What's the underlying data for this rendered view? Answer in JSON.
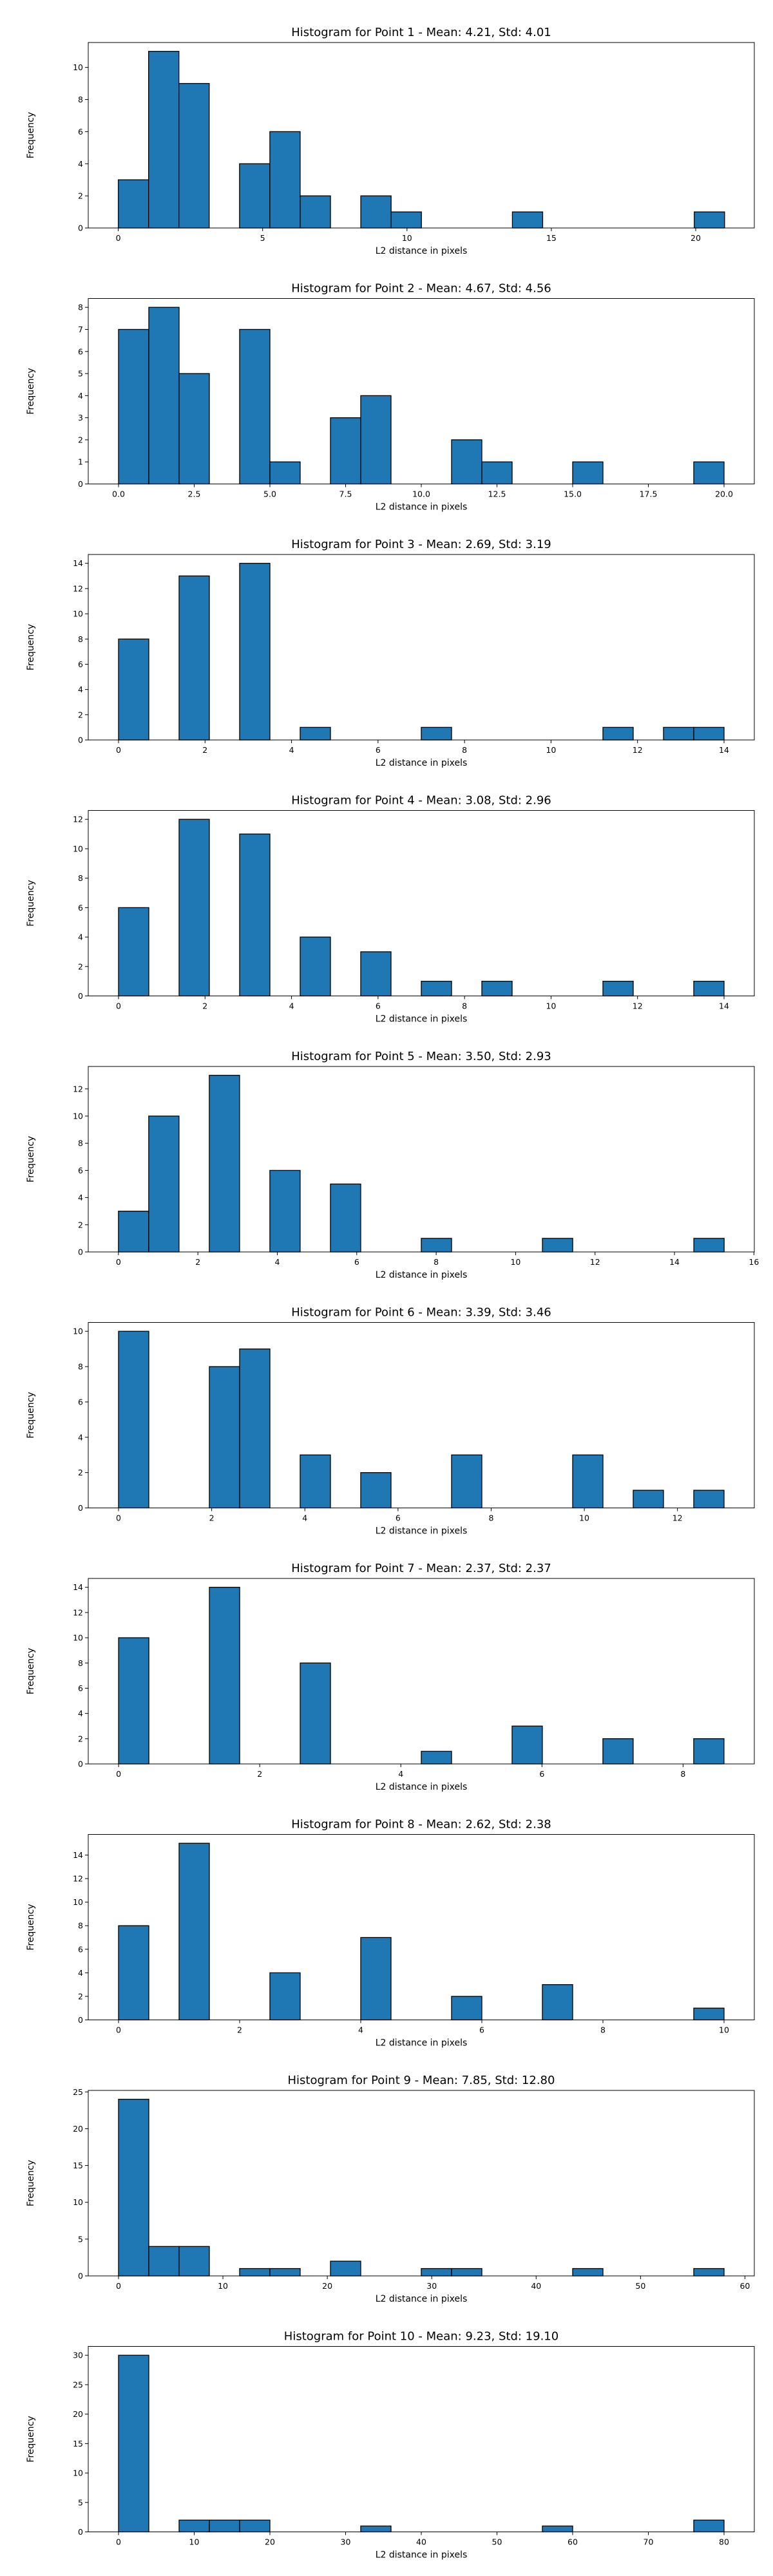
{
  "chart_data": [
    {
      "type": "bar",
      "title": "Histogram for Point 1 - Mean: 4.21, Std: 4.01",
      "xlabel": "L2 distance in pixels",
      "ylabel": "Frequency",
      "xlim": [
        -1.04,
        22.03
      ],
      "ylim": [
        0,
        11.55
      ],
      "xticks": [
        0,
        5,
        10,
        15,
        20
      ],
      "xtick_labels": [
        "0",
        "5",
        "10",
        "15",
        "20"
      ],
      "yticks": [
        0,
        2,
        4,
        6,
        8,
        10
      ],
      "ytick_labels": [
        "0",
        "2",
        "4",
        "6",
        "8",
        "10"
      ],
      "bin_edges": [
        0.0,
        1.05,
        2.1,
        3.15,
        4.2,
        5.25,
        6.3,
        7.35,
        8.4,
        9.45,
        10.5,
        11.55,
        12.6,
        13.65,
        14.7,
        15.75,
        16.8,
        17.85,
        18.9,
        19.95,
        21.0
      ],
      "counts": [
        3,
        11,
        9,
        0,
        4,
        6,
        2,
        0,
        2,
        1,
        0,
        0,
        0,
        1,
        0,
        0,
        0,
        0,
        0,
        1
      ],
      "color": "#1f77b4",
      "edgecolor": "#000000",
      "grid": false
    },
    {
      "type": "bar",
      "title": "Histogram for Point 2 - Mean: 4.67, Std: 4.56",
      "xlabel": "L2 distance in pixels",
      "ylabel": "Frequency",
      "xlim": [
        -1.0,
        21.0
      ],
      "ylim": [
        0,
        8.4
      ],
      "xticks": [
        0.0,
        2.5,
        5.0,
        7.5,
        10.0,
        12.5,
        15.0,
        17.5,
        20.0
      ],
      "xtick_labels": [
        "0.0",
        "2.5",
        "5.0",
        "7.5",
        "10.0",
        "12.5",
        "15.0",
        "17.5",
        "20.0"
      ],
      "yticks": [
        0,
        1,
        2,
        3,
        4,
        5,
        6,
        7,
        8
      ],
      "ytick_labels": [
        "0",
        "1",
        "2",
        "3",
        "4",
        "5",
        "6",
        "7",
        "8"
      ],
      "bin_edges": [
        0.0,
        1.0,
        2.0,
        3.0,
        4.0,
        5.0,
        6.0,
        7.0,
        8.0,
        9.0,
        10.0,
        11.0,
        12.0,
        13.0,
        14.0,
        15.0,
        16.0,
        17.0,
        18.0,
        19.0,
        20.0
      ],
      "counts": [
        7,
        8,
        5,
        0,
        7,
        1,
        0,
        3,
        4,
        0,
        0,
        2,
        1,
        0,
        0,
        1,
        0,
        0,
        0,
        1
      ],
      "color": "#1f77b4",
      "edgecolor": "#000000",
      "grid": false
    },
    {
      "type": "bar",
      "title": "Histogram for Point 3 - Mean: 2.69, Std: 3.19",
      "xlabel": "L2 distance in pixels",
      "ylabel": "Frequency",
      "xlim": [
        -0.7,
        14.7
      ],
      "ylim": [
        0,
        14.7
      ],
      "xticks": [
        0,
        2,
        4,
        6,
        8,
        10,
        12,
        14
      ],
      "xtick_labels": [
        "0",
        "2",
        "4",
        "6",
        "8",
        "10",
        "12",
        "14"
      ],
      "yticks": [
        0,
        2,
        4,
        6,
        8,
        10,
        12,
        14
      ],
      "ytick_labels": [
        "0",
        "2",
        "4",
        "6",
        "8",
        "10",
        "12",
        "14"
      ],
      "bin_edges": [
        0.0,
        0.7,
        1.4,
        2.1,
        2.8,
        3.5,
        4.2,
        4.9,
        5.6,
        6.3,
        7.0,
        7.7,
        8.4,
        9.1,
        9.8,
        10.5,
        11.2,
        11.9,
        12.6,
        13.3,
        14.0
      ],
      "counts": [
        8,
        0,
        13,
        0,
        14,
        0,
        1,
        0,
        0,
        0,
        1,
        0,
        0,
        0,
        0,
        0,
        1,
        0,
        1,
        1
      ],
      "color": "#1f77b4",
      "edgecolor": "#000000",
      "grid": false
    },
    {
      "type": "bar",
      "title": "Histogram for Point 4 - Mean: 3.08, Std: 2.96",
      "xlabel": "L2 distance in pixels",
      "ylabel": "Frequency",
      "xlim": [
        -0.7,
        14.7
      ],
      "ylim": [
        0,
        12.6
      ],
      "xticks": [
        0,
        2,
        4,
        6,
        8,
        10,
        12,
        14
      ],
      "xtick_labels": [
        "0",
        "2",
        "4",
        "6",
        "8",
        "10",
        "12",
        "14"
      ],
      "yticks": [
        0,
        2,
        4,
        6,
        8,
        10,
        12
      ],
      "ytick_labels": [
        "0",
        "2",
        "4",
        "6",
        "8",
        "10",
        "12"
      ],
      "bin_edges": [
        0.0,
        0.7,
        1.4,
        2.1,
        2.8,
        3.5,
        4.2,
        4.9,
        5.6,
        6.3,
        7.0,
        7.7,
        8.4,
        9.1,
        9.8,
        10.5,
        11.2,
        11.9,
        12.6,
        13.3,
        14.0
      ],
      "counts": [
        6,
        0,
        12,
        0,
        11,
        0,
        4,
        0,
        3,
        0,
        1,
        0,
        1,
        0,
        0,
        0,
        1,
        0,
        0,
        1
      ],
      "color": "#1f77b4",
      "edgecolor": "#000000",
      "grid": false
    },
    {
      "type": "bar",
      "title": "Histogram for Point 5 - Mean: 3.50, Std: 2.93",
      "xlabel": "L2 distance in pixels",
      "ylabel": "Frequency",
      "xlim": [
        -0.76,
        16.01
      ],
      "ylim": [
        0,
        13.65
      ],
      "xticks": [
        0,
        2,
        4,
        6,
        8,
        10,
        12,
        14,
        16
      ],
      "xtick_labels": [
        "0",
        "2",
        "4",
        "6",
        "8",
        "10",
        "12",
        "14",
        "16"
      ],
      "yticks": [
        0,
        2,
        4,
        6,
        8,
        10,
        12
      ],
      "ytick_labels": [
        "0",
        "2",
        "4",
        "6",
        "8",
        "10",
        "12"
      ],
      "bin_edges": [
        0.0,
        0.7625,
        1.525,
        2.2875,
        3.05,
        3.8125,
        4.575,
        5.3375,
        6.1,
        6.8625,
        7.625,
        8.3875,
        9.15,
        9.9125,
        10.675,
        11.4375,
        12.2,
        12.9625,
        13.725,
        14.4875,
        15.25
      ],
      "counts": [
        3,
        10,
        0,
        13,
        0,
        6,
        0,
        5,
        0,
        0,
        1,
        0,
        0,
        0,
        1,
        0,
        0,
        0,
        0,
        1
      ],
      "color": "#1f77b4",
      "edgecolor": "#000000",
      "grid": false
    },
    {
      "type": "bar",
      "title": "Histogram for Point 6 - Mean: 3.39, Std: 3.46",
      "xlabel": "L2 distance in pixels",
      "ylabel": "Frequency",
      "xlim": [
        -0.65,
        13.65
      ],
      "ylim": [
        0,
        10.5
      ],
      "xticks": [
        0,
        2,
        4,
        6,
        8,
        10,
        12
      ],
      "xtick_labels": [
        "0",
        "2",
        "4",
        "6",
        "8",
        "10",
        "12"
      ],
      "yticks": [
        0,
        2,
        4,
        6,
        8,
        10
      ],
      "ytick_labels": [
        "0",
        "2",
        "4",
        "6",
        "8",
        "10"
      ],
      "bin_edges": [
        0.0,
        0.65,
        1.3,
        1.95,
        2.6,
        3.25,
        3.9,
        4.55,
        5.2,
        5.85,
        6.5,
        7.15,
        7.8,
        8.45,
        9.1,
        9.75,
        10.4,
        11.05,
        11.7,
        12.35,
        13.0
      ],
      "counts": [
        10,
        0,
        0,
        8,
        9,
        0,
        3,
        0,
        2,
        0,
        0,
        3,
        0,
        0,
        0,
        3,
        0,
        1,
        0,
        1
      ],
      "color": "#1f77b4",
      "edgecolor": "#000000",
      "grid": false
    },
    {
      "type": "bar",
      "title": "Histogram for Point 7 - Mean: 2.37, Std: 2.37",
      "xlabel": "L2 distance in pixels",
      "ylabel": "Frequency",
      "xlim": [
        -0.43,
        9.01
      ],
      "ylim": [
        0,
        14.7
      ],
      "xticks": [
        0,
        2,
        4,
        6,
        8
      ],
      "xtick_labels": [
        "0",
        "2",
        "4",
        "6",
        "8"
      ],
      "yticks": [
        0,
        2,
        4,
        6,
        8,
        10,
        12,
        14
      ],
      "ytick_labels": [
        "0",
        "2",
        "4",
        "6",
        "8",
        "10",
        "12",
        "14"
      ],
      "bin_edges": [
        0.0,
        0.429,
        0.858,
        1.287,
        1.716,
        2.145,
        2.574,
        3.003,
        3.432,
        3.861,
        4.29,
        4.719,
        5.148,
        5.577,
        6.006,
        6.435,
        6.864,
        7.293,
        7.722,
        8.151,
        8.58
      ],
      "counts": [
        10,
        0,
        0,
        14,
        0,
        0,
        8,
        0,
        0,
        0,
        1,
        0,
        0,
        3,
        0,
        0,
        2,
        0,
        0,
        2
      ],
      "color": "#1f77b4",
      "edgecolor": "#000000",
      "grid": false
    },
    {
      "type": "bar",
      "title": "Histogram for Point 8 - Mean: 2.62, Std: 2.38",
      "xlabel": "L2 distance in pixels",
      "ylabel": "Frequency",
      "xlim": [
        -0.5,
        10.5
      ],
      "ylim": [
        0,
        15.75
      ],
      "xticks": [
        0,
        2,
        4,
        6,
        8,
        10
      ],
      "xtick_labels": [
        "0",
        "2",
        "4",
        "6",
        "8",
        "10"
      ],
      "yticks": [
        0,
        2,
        4,
        6,
        8,
        10,
        12,
        14
      ],
      "ytick_labels": [
        "0",
        "2",
        "4",
        "6",
        "8",
        "10",
        "12",
        "14"
      ],
      "bin_edges": [
        0.0,
        0.5,
        1.0,
        1.5,
        2.0,
        2.5,
        3.0,
        3.5,
        4.0,
        4.5,
        5.0,
        5.5,
        6.0,
        6.5,
        7.0,
        7.5,
        8.0,
        8.5,
        9.0,
        9.5,
        10.0
      ],
      "counts": [
        8,
        0,
        15,
        0,
        0,
        4,
        0,
        0,
        7,
        0,
        0,
        2,
        0,
        0,
        3,
        0,
        0,
        0,
        0,
        1
      ],
      "color": "#1f77b4",
      "edgecolor": "#000000",
      "grid": false
    },
    {
      "type": "bar",
      "title": "Histogram for Point 9 - Mean: 7.85, Std: 12.80",
      "xlabel": "L2 distance in pixels",
      "ylabel": "Frequency",
      "xlim": [
        -2.9,
        60.9
      ],
      "ylim": [
        0,
        25.2
      ],
      "xticks": [
        0,
        10,
        20,
        30,
        40,
        50,
        60
      ],
      "xtick_labels": [
        "0",
        "10",
        "20",
        "30",
        "40",
        "50",
        "60"
      ],
      "yticks": [
        0,
        5,
        10,
        15,
        20,
        25
      ],
      "ytick_labels": [
        "0",
        "5",
        "10",
        "15",
        "20",
        "25"
      ],
      "bin_edges": [
        0.0,
        2.9,
        5.8,
        8.7,
        11.6,
        14.5,
        17.4,
        20.3,
        23.2,
        26.1,
        29.0,
        31.9,
        34.8,
        37.7,
        40.6,
        43.5,
        46.4,
        49.3,
        52.2,
        55.1,
        58.0
      ],
      "counts": [
        24,
        4,
        4,
        0,
        1,
        1,
        0,
        2,
        0,
        0,
        1,
        1,
        0,
        0,
        0,
        1,
        0,
        0,
        0,
        1
      ],
      "color": "#1f77b4",
      "edgecolor": "#000000",
      "grid": false
    },
    {
      "type": "bar",
      "title": "Histogram for Point 10 - Mean: 9.23, Std: 19.10",
      "xlabel": "L2 distance in pixels",
      "ylabel": "Frequency",
      "xlim": [
        -4.0,
        84.0
      ],
      "ylim": [
        0,
        31.5
      ],
      "xticks": [
        0,
        10,
        20,
        30,
        40,
        50,
        60,
        70,
        80
      ],
      "xtick_labels": [
        "0",
        "10",
        "20",
        "30",
        "40",
        "50",
        "60",
        "70",
        "80"
      ],
      "yticks": [
        0,
        5,
        10,
        15,
        20,
        25,
        30
      ],
      "ytick_labels": [
        "0",
        "5",
        "10",
        "15",
        "20",
        "25",
        "30"
      ],
      "bin_edges": [
        0.0,
        4.0,
        8.0,
        12.0,
        16.0,
        20.0,
        24.0,
        28.0,
        32.0,
        36.0,
        40.0,
        44.0,
        48.0,
        52.0,
        56.0,
        60.0,
        64.0,
        68.0,
        72.0,
        76.0,
        80.0
      ],
      "counts": [
        30,
        0,
        2,
        2,
        2,
        0,
        0,
        0,
        1,
        0,
        0,
        0,
        0,
        0,
        1,
        0,
        0,
        0,
        0,
        2
      ],
      "color": "#1f77b4",
      "edgecolor": "#000000",
      "grid": false
    }
  ]
}
